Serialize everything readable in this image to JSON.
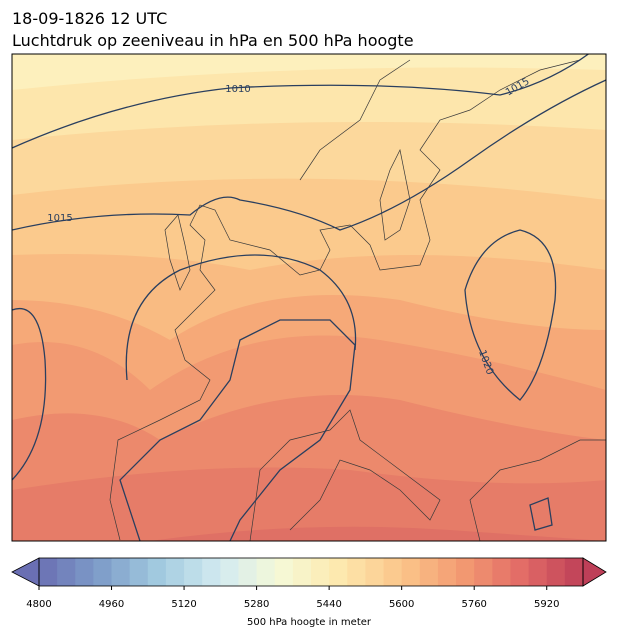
{
  "title": "18-09-1826 12 UTC",
  "subtitle": "Luchtdruk op zeeniveau in hPa en 500 hPa hoogte",
  "map": {
    "isobar_labels": [
      "1010",
      "1015",
      "1015",
      "1020"
    ]
  },
  "colorbar": {
    "label": "500 hPa hoogte in meter",
    "vlim": [
      4800,
      6000
    ],
    "step": 40,
    "ticks": [
      4800,
      4960,
      5120,
      5280,
      5440,
      5600,
      5760,
      5920
    ],
    "colormap": [
      "#6a6fb3",
      "#7e9dc9",
      "#a3cbe0",
      "#d3ebf1",
      "#f6f9d6",
      "#fde8ad",
      "#fbc58a",
      "#f39a72",
      "#e26b66",
      "#be3f58"
    ]
  }
}
